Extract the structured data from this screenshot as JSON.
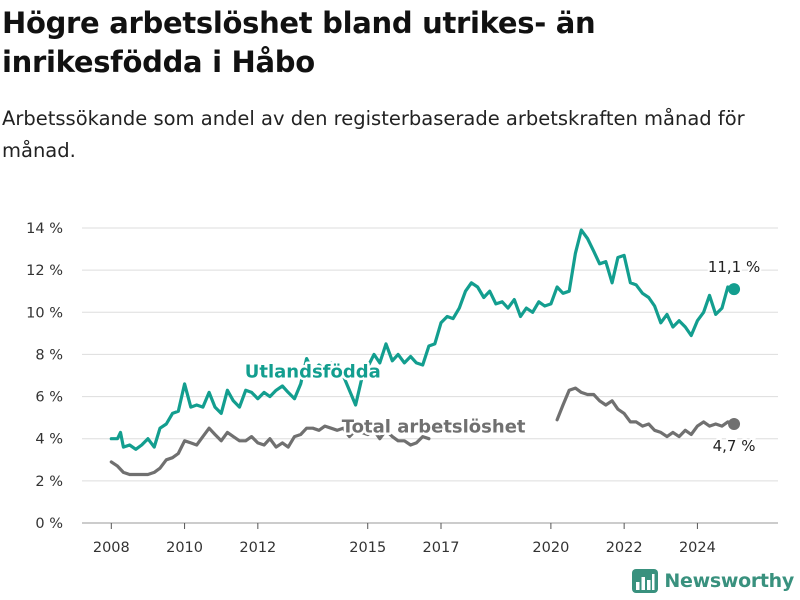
{
  "header": {
    "title": "Högre arbetslöshet bland utrikes- än inrikesfödda i Håbo",
    "subtitle": "Arbetssökande som andel av den registerbaserade arbetskraften månad för månad."
  },
  "brand": {
    "name": "Newsworthy",
    "icon": "bar-chart-logo-icon",
    "color": "#39917e"
  },
  "chart_data": {
    "type": "line",
    "xlim": [
      2007.2,
      2026.2
    ],
    "ylim": [
      0,
      14
    ],
    "y_ticks": [
      0,
      2,
      4,
      6,
      8,
      10,
      12,
      14
    ],
    "y_tick_labels": [
      "0 %",
      "2 %",
      "4 %",
      "6 %",
      "8 %",
      "10 %",
      "12 %",
      "14 %"
    ],
    "x_ticks": [
      2008,
      2010,
      2012,
      2015,
      2017,
      2020,
      2022,
      2024
    ],
    "x_tick_labels": [
      "2008",
      "2010",
      "2012",
      "2015",
      "2017",
      "2020",
      "2022",
      "2024"
    ],
    "grid": "horizontal",
    "series": [
      {
        "name": "Utlandsfödda",
        "color": "#139e8f",
        "label_at": [
          2013.5,
          6.9
        ],
        "end_label": "11,1 %",
        "end_point": [
          2025.0,
          11.1
        ],
        "segments": [
          [
            [
              2008.0,
              4.0
            ],
            [
              2008.17,
              4.0
            ],
            [
              2008.25,
              4.3
            ],
            [
              2008.33,
              3.6
            ],
            [
              2008.5,
              3.7
            ],
            [
              2008.67,
              3.5
            ],
            [
              2008.83,
              3.7
            ],
            [
              2009.0,
              4.0
            ],
            [
              2009.17,
              3.6
            ],
            [
              2009.33,
              4.5
            ],
            [
              2009.5,
              4.7
            ],
            [
              2009.67,
              5.2
            ],
            [
              2009.83,
              5.3
            ],
            [
              2010.0,
              6.6
            ],
            [
              2010.17,
              5.5
            ],
            [
              2010.33,
              5.6
            ],
            [
              2010.5,
              5.5
            ],
            [
              2010.67,
              6.2
            ],
            [
              2010.83,
              5.5
            ],
            [
              2011.0,
              5.2
            ],
            [
              2011.17,
              6.3
            ],
            [
              2011.33,
              5.8
            ],
            [
              2011.5,
              5.5
            ],
            [
              2011.67,
              6.3
            ],
            [
              2011.83,
              6.2
            ],
            [
              2012.0,
              5.9
            ],
            [
              2012.17,
              6.2
            ],
            [
              2012.33,
              6.0
            ],
            [
              2012.5,
              6.3
            ],
            [
              2012.67,
              6.5
            ],
            [
              2012.83,
              6.2
            ],
            [
              2013.0,
              5.9
            ],
            [
              2013.17,
              6.6
            ],
            [
              2013.33,
              7.8
            ],
            [
              2013.5,
              7.2
            ],
            [
              2013.67,
              7.5
            ],
            [
              2013.83,
              7.3
            ],
            [
              2014.0,
              7.6
            ],
            [
              2014.17,
              7.2
            ],
            [
              2014.33,
              7.0
            ],
            [
              2014.5,
              6.3
            ],
            [
              2014.67,
              5.6
            ],
            [
              2014.83,
              6.8
            ],
            [
              2015.0,
              7.4
            ],
            [
              2015.17,
              8.0
            ],
            [
              2015.33,
              7.6
            ],
            [
              2015.5,
              8.5
            ],
            [
              2015.67,
              7.7
            ],
            [
              2015.83,
              8.0
            ],
            [
              2016.0,
              7.6
            ],
            [
              2016.17,
              7.9
            ],
            [
              2016.33,
              7.6
            ],
            [
              2016.5,
              7.5
            ],
            [
              2016.67,
              8.4
            ],
            [
              2016.83,
              8.5
            ],
            [
              2017.0,
              9.5
            ],
            [
              2017.17,
              9.8
            ],
            [
              2017.33,
              9.7
            ],
            [
              2017.5,
              10.2
            ],
            [
              2017.67,
              11.0
            ],
            [
              2017.83,
              11.4
            ],
            [
              2018.0,
              11.2
            ],
            [
              2018.17,
              10.7
            ],
            [
              2018.33,
              11.0
            ],
            [
              2018.5,
              10.4
            ],
            [
              2018.67,
              10.5
            ],
            [
              2018.83,
              10.2
            ],
            [
              2019.0,
              10.6
            ],
            [
              2019.17,
              9.8
            ],
            [
              2019.33,
              10.2
            ],
            [
              2019.5,
              10.0
            ],
            [
              2019.67,
              10.5
            ],
            [
              2019.83,
              10.3
            ],
            [
              2020.0,
              10.4
            ],
            [
              2020.17,
              11.2
            ],
            [
              2020.33,
              10.9
            ],
            [
              2020.5,
              11.0
            ],
            [
              2020.67,
              12.8
            ],
            [
              2020.83,
              13.9
            ],
            [
              2021.0,
              13.5
            ],
            [
              2021.17,
              12.9
            ],
            [
              2021.33,
              12.3
            ],
            [
              2021.5,
              12.4
            ],
            [
              2021.67,
              11.4
            ],
            [
              2021.83,
              12.6
            ],
            [
              2022.0,
              12.7
            ],
            [
              2022.17,
              11.4
            ],
            [
              2022.33,
              11.3
            ],
            [
              2022.5,
              10.9
            ],
            [
              2022.67,
              10.7
            ],
            [
              2022.83,
              10.3
            ],
            [
              2023.0,
              9.5
            ],
            [
              2023.17,
              9.9
            ],
            [
              2023.33,
              9.3
            ],
            [
              2023.5,
              9.6
            ],
            [
              2023.67,
              9.3
            ],
            [
              2023.83,
              8.9
            ],
            [
              2024.0,
              9.6
            ],
            [
              2024.17,
              10.0
            ],
            [
              2024.33,
              10.8
            ],
            [
              2024.5,
              9.9
            ],
            [
              2024.67,
              10.2
            ],
            [
              2024.83,
              11.2
            ],
            [
              2025.0,
              11.1
            ]
          ]
        ]
      },
      {
        "name": "Total arbetslöshet",
        "color": "#707070",
        "label_at": [
          2016.8,
          4.3
        ],
        "end_label": "4,7 %",
        "end_point": [
          2025.0,
          4.7
        ],
        "segments": [
          [
            [
              2008.0,
              2.9
            ],
            [
              2008.17,
              2.7
            ],
            [
              2008.33,
              2.4
            ],
            [
              2008.5,
              2.3
            ],
            [
              2008.67,
              2.3
            ],
            [
              2008.83,
              2.3
            ],
            [
              2009.0,
              2.3
            ],
            [
              2009.17,
              2.4
            ],
            [
              2009.33,
              2.6
            ],
            [
              2009.5,
              3.0
            ],
            [
              2009.67,
              3.1
            ],
            [
              2009.83,
              3.3
            ],
            [
              2010.0,
              3.9
            ],
            [
              2010.17,
              3.8
            ],
            [
              2010.33,
              3.7
            ],
            [
              2010.5,
              4.1
            ],
            [
              2010.67,
              4.5
            ],
            [
              2010.83,
              4.2
            ],
            [
              2011.0,
              3.9
            ],
            [
              2011.17,
              4.3
            ],
            [
              2011.33,
              4.1
            ],
            [
              2011.5,
              3.9
            ],
            [
              2011.67,
              3.9
            ],
            [
              2011.83,
              4.1
            ],
            [
              2012.0,
              3.8
            ],
            [
              2012.17,
              3.7
            ],
            [
              2012.33,
              4.0
            ],
            [
              2012.5,
              3.6
            ],
            [
              2012.67,
              3.8
            ],
            [
              2012.83,
              3.6
            ],
            [
              2013.0,
              4.1
            ],
            [
              2013.17,
              4.2
            ],
            [
              2013.33,
              4.5
            ],
            [
              2013.5,
              4.5
            ],
            [
              2013.67,
              4.4
            ],
            [
              2013.83,
              4.6
            ],
            [
              2014.0,
              4.5
            ],
            [
              2014.17,
              4.4
            ],
            [
              2014.33,
              4.5
            ],
            [
              2014.5,
              4.1
            ],
            [
              2014.67,
              4.4
            ],
            [
              2014.83,
              4.3
            ],
            [
              2015.0,
              4.2
            ],
            [
              2015.17,
              4.4
            ],
            [
              2015.33,
              4.0
            ],
            [
              2015.5,
              4.4
            ],
            [
              2015.67,
              4.1
            ],
            [
              2015.83,
              3.9
            ],
            [
              2016.0,
              3.9
            ],
            [
              2016.17,
              3.7
            ],
            [
              2016.33,
              3.8
            ],
            [
              2016.5,
              4.1
            ],
            [
              2016.67,
              4.0
            ]
          ],
          [
            [
              2020.17,
              4.9
            ],
            [
              2020.33,
              5.6
            ],
            [
              2020.5,
              6.3
            ],
            [
              2020.67,
              6.4
            ],
            [
              2020.83,
              6.2
            ],
            [
              2021.0,
              6.1
            ],
            [
              2021.17,
              6.1
            ],
            [
              2021.33,
              5.8
            ],
            [
              2021.5,
              5.6
            ],
            [
              2021.67,
              5.8
            ],
            [
              2021.83,
              5.4
            ],
            [
              2022.0,
              5.2
            ],
            [
              2022.17,
              4.8
            ],
            [
              2022.33,
              4.8
            ],
            [
              2022.5,
              4.6
            ],
            [
              2022.67,
              4.7
            ],
            [
              2022.83,
              4.4
            ],
            [
              2023.0,
              4.3
            ],
            [
              2023.17,
              4.1
            ],
            [
              2023.33,
              4.3
            ],
            [
              2023.5,
              4.1
            ],
            [
              2023.67,
              4.4
            ],
            [
              2023.83,
              4.2
            ],
            [
              2024.0,
              4.6
            ],
            [
              2024.17,
              4.8
            ],
            [
              2024.33,
              4.6
            ],
            [
              2024.5,
              4.7
            ],
            [
              2024.67,
              4.6
            ],
            [
              2024.83,
              4.8
            ],
            [
              2025.0,
              4.7
            ]
          ]
        ]
      }
    ]
  }
}
